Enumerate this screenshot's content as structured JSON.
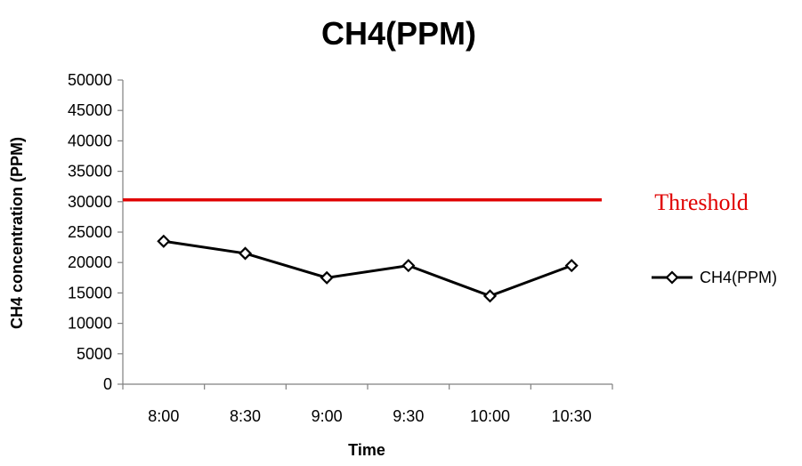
{
  "chart_data": {
    "type": "line",
    "title": "CH4(PPM)",
    "xlabel": "Time",
    "ylabel": "CH4 concentration (PPM)",
    "categories": [
      "8:00",
      "8:30",
      "9:00",
      "9:30",
      "10:00",
      "10:30"
    ],
    "series": [
      {
        "name": "CH4(PPM)",
        "values": [
          23500,
          21500,
          17500,
          19500,
          14500,
          19500
        ],
        "color": "#000000",
        "marker": "diamond"
      }
    ],
    "threshold": {
      "label": "Threshold",
      "value": 30300,
      "color": "#e00000"
    },
    "ylim": [
      0,
      50000
    ],
    "yticks": [
      0,
      5000,
      10000,
      15000,
      20000,
      25000,
      30000,
      35000,
      40000,
      45000,
      50000
    ],
    "grid": false,
    "legend": "right"
  }
}
